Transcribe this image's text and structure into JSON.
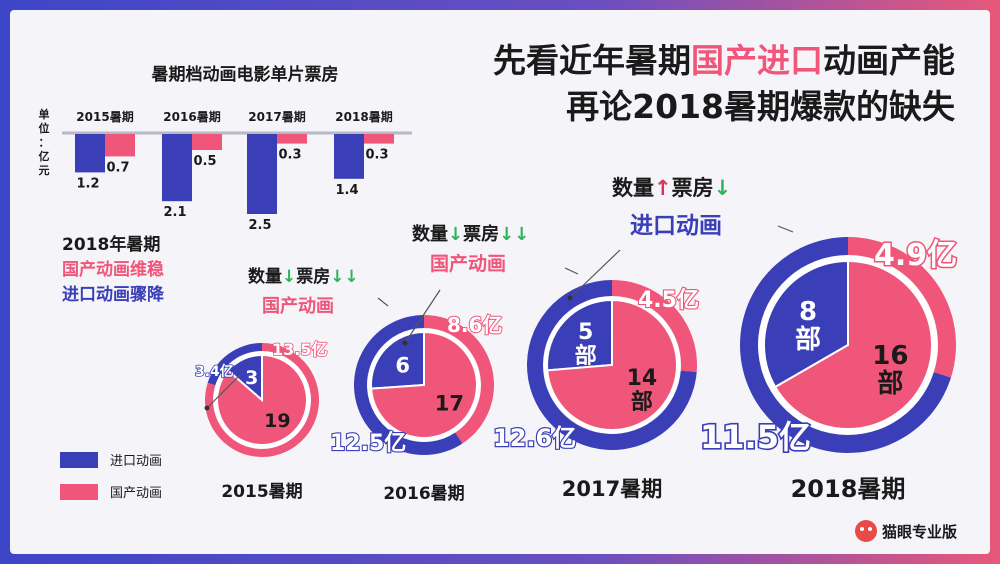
{
  "headline": {
    "line1_prefix": "先看近年暑期",
    "line1_highlight": "国产进口",
    "line1_suffix": "动画产能",
    "line2": "再论2018暑期爆款的缺失"
  },
  "colors": {
    "imported": "#3a3fb8",
    "domestic": "#f0567a",
    "dark": "#1a1a1a",
    "up_arrow": "#e0334f",
    "down_arrow": "#2fb35a"
  },
  "bar_block": {
    "title": "暑期档动画电影单片票房",
    "unit_label": "单位：亿元"
  },
  "summary": {
    "line1": "2018年暑期",
    "line2": "国产动画维稳",
    "line3": "进口动画骤降"
  },
  "legend": [
    {
      "label": "进口动画",
      "color": "#3a3fb8"
    },
    {
      "label": "国产动画",
      "color": "#f0567a"
    }
  ],
  "callouts": [
    {
      "metric1": "数量",
      "arrow1": "↓",
      "metric2": "票房",
      "arrow2": "↓↓",
      "subject": "国产动画",
      "subject_color": "#f0567a"
    },
    {
      "metric1": "数量",
      "arrow1": "↓",
      "metric2": "票房",
      "arrow2": "↓↓",
      "subject": "国产动画",
      "subject_color": "#f0567a"
    },
    {
      "metric1": "数量",
      "arrow1": "↑",
      "metric2": "票房",
      "arrow2": "↓",
      "subject": "进口动画",
      "subject_color": "#3a3fb8"
    }
  ],
  "brand": {
    "name": "猫眼专业版",
    "icon": "cat-logo-icon"
  },
  "chart_data": [
    {
      "type": "bar",
      "title": "暑期档动画电影单片票房",
      "ylabel": "单位：亿元",
      "categories": [
        "2015暑期",
        "2016暑期",
        "2017暑期",
        "2018暑期"
      ],
      "series": [
        {
          "name": "进口动画",
          "values": [
            1.2,
            2.1,
            2.5,
            1.4
          ]
        },
        {
          "name": "国产动画",
          "values": [
            0.7,
            0.5,
            0.3,
            0.3
          ]
        }
      ],
      "value_labels": [
        [
          "1.2",
          "0.7"
        ],
        [
          "2.1",
          "0.5"
        ],
        [
          "2.5",
          "0.3"
        ],
        [
          "1.4",
          "0.3"
        ]
      ],
      "orientation": "downward"
    },
    {
      "type": "pie",
      "description": "count of films (inner pie) and box office (outer ring) per summer",
      "periods": [
        {
          "label": "2015暑期",
          "count_imported": "3",
          "count_domestic": "19",
          "box_imported": "3.4亿",
          "box_domestic": "13.5亿",
          "counts": [
            3,
            19
          ],
          "box": [
            3.4,
            13.5
          ],
          "scale": 1.0
        },
        {
          "label": "2016暑期",
          "count_imported": "6",
          "count_domestic": "17",
          "box_imported": "12.5亿",
          "box_domestic": "8.6亿",
          "counts": [
            6,
            17
          ],
          "box": [
            12.5,
            8.6
          ],
          "scale": 1.0
        },
        {
          "label": "2017暑期",
          "count_imported": "5部",
          "count_domestic": "14部",
          "box_imported": "12.6亿",
          "box_domestic": "4.5亿",
          "counts": [
            5,
            14
          ],
          "box": [
            12.6,
            4.5
          ],
          "scale": 1.0
        },
        {
          "label": "2018暑期",
          "count_imported": "8部",
          "count_domestic": "16部",
          "box_imported": "11.5亿",
          "box_domestic": "4.9亿",
          "counts": [
            8,
            16
          ],
          "box": [
            11.5,
            4.9
          ],
          "scale": 1.0
        }
      ]
    }
  ]
}
